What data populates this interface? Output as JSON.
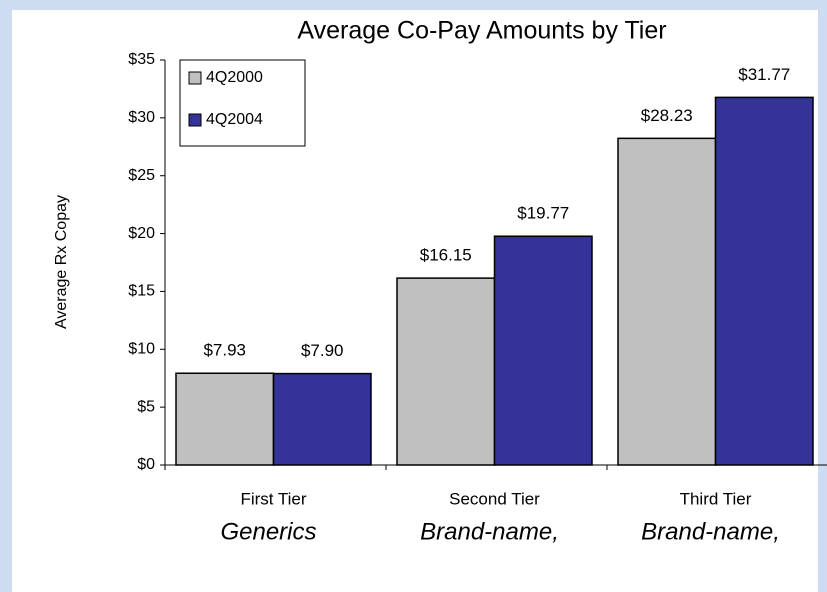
{
  "chart_data": {
    "type": "bar",
    "title": "Average Co-Pay Amounts by Tier",
    "y_label": "Average Rx Copay",
    "categories": [
      "First Tier",
      "Second Tier",
      "Third Tier"
    ],
    "category_notes": [
      "Generics",
      "Brand-name,",
      "Brand-name,"
    ],
    "series": [
      {
        "name": "4Q2000",
        "color": "#c0c0c0",
        "values": [
          7.93,
          16.15,
          28.23
        ],
        "value_labels": [
          "$7.93",
          "$16.15",
          "$28.23"
        ]
      },
      {
        "name": "4Q2004",
        "color": "#333399",
        "values": [
          7.9,
          19.77,
          31.77
        ],
        "value_labels": [
          "$7.90",
          "$19.77",
          "$31.77"
        ]
      }
    ],
    "ylim": [
      0,
      35
    ],
    "yticks": [
      {
        "value": 0,
        "label": "$0"
      },
      {
        "value": 5,
        "label": "$5"
      },
      {
        "value": 10,
        "label": "$10"
      },
      {
        "value": 15,
        "label": "$15"
      },
      {
        "value": 20,
        "label": "$20"
      },
      {
        "value": 25,
        "label": "$25"
      },
      {
        "value": 30,
        "label": "$30"
      },
      {
        "value": 35,
        "label": "$35"
      }
    ],
    "legend": "top-left"
  }
}
